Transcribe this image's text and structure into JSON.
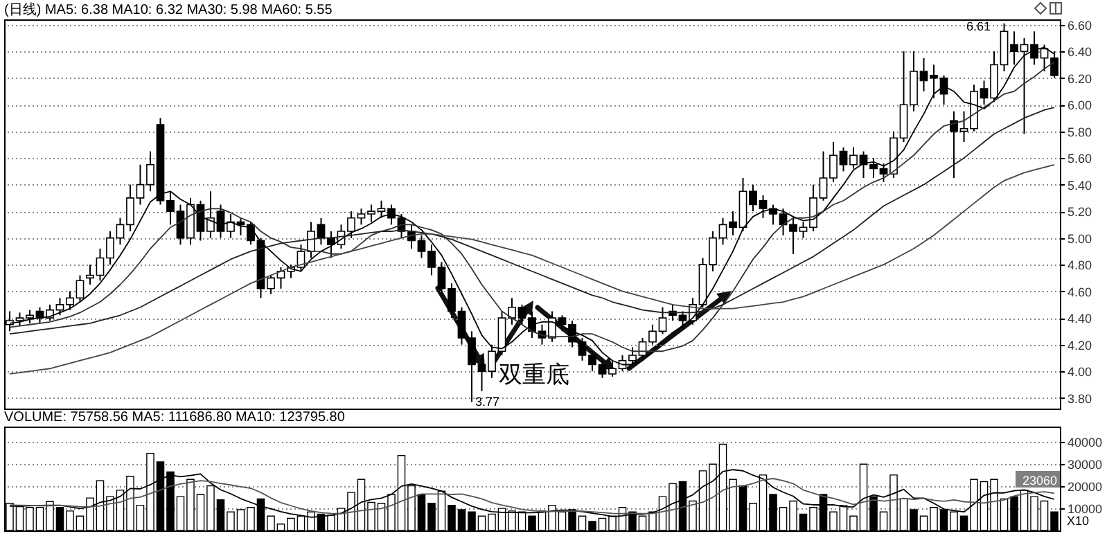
{
  "chart_data": [
    {
      "type": "candlestick",
      "title": "(日线) MA5: 6.38 MA10: 6.32 MA30: 5.98 MA60: 5.55",
      "categories": [
        null,
        null,
        null,
        null,
        null,
        null,
        null,
        null,
        null,
        null,
        null,
        null,
        null,
        null,
        null,
        null,
        null,
        null,
        null,
        null,
        null,
        null,
        null,
        null,
        null,
        null,
        null,
        null,
        null,
        null,
        null,
        null,
        null,
        null,
        null,
        null,
        null,
        null,
        null,
        null,
        null,
        null,
        null,
        null,
        null,
        null,
        null,
        null,
        null,
        null,
        null,
        null,
        null,
        null,
        null,
        null,
        null,
        null,
        null,
        null,
        null,
        null,
        null,
        null,
        null,
        null,
        null,
        null,
        null,
        null,
        null,
        null,
        null,
        null,
        null,
        null,
        null,
        null,
        null,
        null,
        null,
        null,
        null,
        null,
        null,
        null,
        null,
        null,
        null,
        null,
        null,
        null,
        null,
        null,
        null,
        null,
        null,
        null,
        null,
        null,
        null,
        null,
        null,
        null,
        null
      ],
      "ohlc": [
        [
          4.35,
          4.45,
          4.3,
          4.38
        ],
        [
          4.38,
          4.44,
          4.34,
          4.4
        ],
        [
          4.4,
          4.46,
          4.36,
          4.42
        ],
        [
          4.45,
          4.48,
          4.36,
          4.4
        ],
        [
          4.4,
          4.5,
          4.38,
          4.46
        ],
        [
          4.46,
          4.55,
          4.42,
          4.5
        ],
        [
          4.5,
          4.6,
          4.46,
          4.55
        ],
        [
          4.55,
          4.72,
          4.52,
          4.68
        ],
        [
          4.7,
          4.8,
          4.65,
          4.72
        ],
        [
          4.72,
          4.92,
          4.68,
          4.85
        ],
        [
          4.85,
          5.05,
          4.8,
          5.0
        ],
        [
          5.0,
          5.15,
          4.95,
          5.1
        ],
        [
          5.1,
          5.4,
          5.05,
          5.3
        ],
        [
          5.3,
          5.55,
          5.25,
          5.4
        ],
        [
          5.4,
          5.65,
          5.35,
          5.55
        ],
        [
          5.85,
          5.9,
          5.25,
          5.28
        ],
        [
          5.28,
          5.35,
          5.1,
          5.2
        ],
        [
          5.2,
          5.25,
          4.95,
          5.0
        ],
        [
          5.0,
          5.3,
          4.95,
          5.25
        ],
        [
          5.25,
          5.28,
          4.98,
          5.05
        ],
        [
          5.05,
          5.35,
          5.0,
          5.15
        ],
        [
          5.2,
          5.25,
          5.0,
          5.05
        ],
        [
          5.05,
          5.18,
          5.0,
          5.12
        ],
        [
          5.12,
          5.15,
          5.02,
          5.1
        ],
        [
          5.1,
          5.12,
          4.95,
          4.98
        ],
        [
          4.98,
          5.0,
          4.55,
          4.62
        ],
        [
          4.62,
          4.72,
          4.58,
          4.7
        ],
        [
          4.7,
          4.78,
          4.62,
          4.75
        ],
        [
          4.75,
          4.8,
          4.7,
          4.78
        ],
        [
          4.78,
          4.95,
          4.75,
          4.9
        ],
        [
          4.9,
          5.12,
          4.85,
          5.05
        ],
        [
          5.1,
          5.15,
          4.95,
          5.0
        ],
        [
          5.0,
          5.05,
          4.85,
          4.95
        ],
        [
          4.95,
          5.1,
          4.92,
          5.05
        ],
        [
          5.05,
          5.2,
          5.0,
          5.15
        ],
        [
          5.15,
          5.22,
          5.1,
          5.18
        ],
        [
          5.18,
          5.25,
          5.12,
          5.2
        ],
        [
          5.2,
          5.28,
          5.15,
          5.22
        ],
        [
          5.22,
          5.25,
          5.1,
          5.15
        ],
        [
          5.15,
          5.18,
          5.0,
          5.05
        ],
        [
          5.05,
          5.1,
          4.92,
          4.98
        ],
        [
          4.98,
          5.02,
          4.85,
          4.9
        ],
        [
          4.9,
          4.95,
          4.72,
          4.78
        ],
        [
          4.78,
          4.82,
          4.58,
          4.62
        ],
        [
          4.62,
          4.66,
          4.4,
          4.45
        ],
        [
          4.45,
          4.48,
          4.2,
          4.25
        ],
        [
          4.25,
          4.3,
          3.77,
          4.05
        ],
        [
          4.05,
          4.1,
          3.85,
          4.0
        ],
        [
          4.0,
          4.2,
          3.95,
          4.15
        ],
        [
          4.15,
          4.45,
          4.12,
          4.4
        ],
        [
          4.4,
          4.55,
          4.35,
          4.48
        ],
        [
          4.48,
          4.5,
          4.35,
          4.4
        ],
        [
          4.4,
          4.45,
          4.25,
          4.3
        ],
        [
          4.3,
          4.35,
          4.2,
          4.25
        ],
        [
          4.25,
          4.45,
          4.22,
          4.4
        ],
        [
          4.4,
          4.42,
          4.3,
          4.35
        ],
        [
          4.35,
          4.38,
          4.18,
          4.22
        ],
        [
          4.22,
          4.25,
          4.08,
          4.12
        ],
        [
          4.12,
          4.15,
          4.0,
          4.05
        ],
        [
          4.05,
          4.08,
          3.95,
          3.98
        ],
        [
          3.98,
          4.08,
          3.96,
          4.02
        ],
        [
          4.02,
          4.12,
          4.0,
          4.08
        ],
        [
          4.08,
          4.18,
          4.05,
          4.12
        ],
        [
          4.12,
          4.25,
          4.1,
          4.22
        ],
        [
          4.22,
          4.35,
          4.2,
          4.3
        ],
        [
          4.3,
          4.48,
          4.28,
          4.4
        ],
        [
          4.45,
          4.5,
          4.38,
          4.42
        ],
        [
          4.42,
          4.45,
          4.32,
          4.38
        ],
        [
          4.38,
          4.55,
          4.35,
          4.5
        ],
        [
          4.5,
          4.85,
          4.48,
          4.8
        ],
        [
          4.8,
          5.05,
          4.75,
          5.0
        ],
        [
          5.0,
          5.15,
          4.95,
          5.1
        ],
        [
          5.12,
          5.2,
          5.02,
          5.08
        ],
        [
          5.08,
          5.45,
          5.05,
          5.35
        ],
        [
          5.35,
          5.4,
          5.2,
          5.25
        ],
        [
          5.28,
          5.32,
          5.15,
          5.22
        ],
        [
          5.22,
          5.25,
          5.1,
          5.18
        ],
        [
          5.18,
          5.22,
          5.02,
          5.1
        ],
        [
          5.1,
          5.15,
          4.88,
          5.05
        ],
        [
          5.05,
          5.12,
          5.0,
          5.08
        ],
        [
          5.08,
          5.4,
          5.05,
          5.3
        ],
        [
          5.3,
          5.65,
          5.28,
          5.45
        ],
        [
          5.45,
          5.72,
          5.42,
          5.62
        ],
        [
          5.65,
          5.68,
          5.5,
          5.55
        ],
        [
          5.55,
          5.68,
          5.52,
          5.62
        ],
        [
          5.62,
          5.65,
          5.45,
          5.55
        ],
        [
          5.55,
          5.6,
          5.45,
          5.52
        ],
        [
          5.52,
          5.56,
          5.42,
          5.48
        ],
        [
          5.48,
          5.8,
          5.45,
          5.75
        ],
        [
          5.75,
          6.4,
          5.72,
          6.0
        ],
        [
          6.0,
          6.4,
          5.95,
          6.25
        ],
        [
          6.25,
          6.35,
          6.1,
          6.18
        ],
        [
          6.22,
          6.3,
          6.05,
          6.2
        ],
        [
          6.2,
          6.22,
          6.0,
          6.08
        ],
        [
          5.88,
          5.95,
          5.45,
          5.8
        ],
        [
          5.8,
          5.95,
          5.72,
          5.82
        ],
        [
          5.82,
          6.15,
          5.8,
          6.1
        ],
        [
          6.12,
          6.18,
          6.0,
          6.05
        ],
        [
          6.05,
          6.4,
          6.02,
          6.3
        ],
        [
          6.3,
          6.61,
          6.25,
          6.55
        ],
        [
          6.45,
          6.55,
          6.3,
          6.4
        ],
        [
          6.4,
          6.5,
          5.78,
          6.45
        ],
        [
          6.45,
          6.55,
          6.3,
          6.35
        ],
        [
          6.35,
          6.45,
          6.25,
          6.42
        ],
        [
          6.35,
          6.4,
          6.2,
          6.22
        ]
      ],
      "series": [
        {
          "type": "line",
          "color": "#000000",
          "values": [
            4.36,
            4.37,
            4.39,
            4.4,
            4.41,
            4.44,
            4.47,
            4.52,
            4.58,
            4.66,
            4.76,
            4.87,
            4.99,
            5.13,
            5.27,
            5.33,
            5.35,
            5.29,
            5.25,
            5.16,
            5.13,
            5.1,
            5.12,
            5.09,
            5.08,
            4.97,
            4.9,
            4.83,
            4.77,
            4.75,
            4.84,
            4.9,
            4.94,
            4.99,
            5.04,
            5.07,
            5.11,
            5.16,
            5.18,
            5.16,
            5.12,
            5.06,
            4.97,
            4.87,
            4.73,
            4.58,
            4.43,
            4.27,
            4.18,
            4.17,
            4.22,
            4.29,
            4.35,
            4.37,
            4.37,
            4.34,
            4.3,
            4.27,
            4.23,
            4.14,
            4.08,
            4.05,
            4.05,
            4.08,
            4.15,
            4.23,
            4.29,
            4.34,
            4.4,
            4.5,
            4.62,
            4.76,
            4.9,
            5.07,
            5.16,
            5.2,
            5.22,
            5.2,
            5.16,
            5.13,
            5.14,
            5.2,
            5.3,
            5.4,
            5.51,
            5.56,
            5.57,
            5.54,
            5.58,
            5.66,
            5.8,
            5.93,
            6.08,
            6.14,
            6.1,
            6.02,
            6.0,
            5.97,
            6.03,
            6.14,
            6.28,
            6.37,
            6.41,
            6.43,
            6.38
          ]
        },
        {
          "type": "line",
          "color": "#333333",
          "values": [
            4.33,
            4.34,
            4.35,
            4.36,
            4.37,
            4.39,
            4.41,
            4.44,
            4.48,
            4.52,
            4.58,
            4.65,
            4.73,
            4.82,
            4.92,
            5.0,
            5.08,
            5.12,
            5.17,
            5.2,
            5.22,
            5.22,
            5.19,
            5.15,
            5.12,
            5.05,
            5.0,
            4.97,
            4.93,
            4.92,
            4.9,
            4.9,
            4.88,
            4.88,
            4.9,
            4.96,
            5.02,
            5.05,
            5.07,
            5.1,
            5.1,
            5.08,
            5.06,
            5.03,
            4.96,
            4.88,
            4.77,
            4.65,
            4.55,
            4.45,
            4.4,
            4.35,
            4.3,
            4.27,
            4.26,
            4.26,
            4.26,
            4.28,
            4.28,
            4.25,
            4.22,
            4.18,
            4.15,
            4.15,
            4.15,
            4.15,
            4.17,
            4.19,
            4.23,
            4.31,
            4.4,
            4.5,
            4.6,
            4.72,
            4.84,
            4.93,
            5.03,
            5.1,
            5.15,
            5.15,
            5.16,
            5.2,
            5.25,
            5.28,
            5.33,
            5.38,
            5.42,
            5.45,
            5.5,
            5.56,
            5.62,
            5.7,
            5.78,
            5.84,
            5.86,
            5.88,
            5.93,
            5.98,
            6.03,
            6.08,
            6.1,
            6.16,
            6.21,
            6.27,
            6.32
          ]
        },
        {
          "type": "line",
          "color": "#222222",
          "values": [
            4.28,
            4.29,
            4.3,
            4.31,
            4.32,
            4.33,
            4.34,
            4.35,
            4.36,
            4.38,
            4.4,
            4.42,
            4.45,
            4.48,
            4.52,
            4.56,
            4.6,
            4.64,
            4.68,
            4.72,
            4.76,
            4.8,
            4.84,
            4.87,
            4.9,
            4.92,
            4.94,
            4.96,
            4.97,
            4.98,
            4.99,
            5.0,
            5.0,
            5.01,
            5.02,
            5.03,
            5.04,
            5.05,
            5.05,
            5.06,
            5.05,
            5.04,
            5.03,
            5.01,
            4.99,
            4.96,
            4.93,
            4.9,
            4.87,
            4.84,
            4.81,
            4.78,
            4.75,
            4.72,
            4.69,
            4.66,
            4.63,
            4.6,
            4.57,
            4.55,
            4.52,
            4.5,
            4.48,
            4.46,
            4.45,
            4.44,
            4.44,
            4.44,
            4.44,
            4.45,
            4.47,
            4.5,
            4.54,
            4.58,
            4.62,
            4.66,
            4.7,
            4.74,
            4.78,
            4.82,
            4.86,
            4.91,
            4.96,
            5.01,
            5.06,
            5.12,
            5.18,
            5.24,
            5.28,
            5.32,
            5.36,
            5.4,
            5.45,
            5.5,
            5.55,
            5.6,
            5.66,
            5.72,
            5.78,
            5.82,
            5.86,
            5.9,
            5.93,
            5.96,
            5.98
          ]
        },
        {
          "type": "line",
          "color": "#444444",
          "values": [
            3.98,
            3.99,
            4.0,
            4.01,
            4.02,
            4.04,
            4.06,
            4.08,
            4.1,
            4.12,
            4.14,
            4.17,
            4.2,
            4.23,
            4.26,
            4.3,
            4.34,
            4.38,
            4.42,
            4.46,
            4.5,
            4.54,
            4.58,
            4.62,
            4.66,
            4.69,
            4.72,
            4.75,
            4.78,
            4.8,
            4.82,
            4.84,
            4.86,
            4.88,
            4.9,
            4.92,
            4.94,
            4.96,
            4.98,
            5.0,
            5.02,
            5.03,
            5.03,
            5.02,
            5.01,
            5.0,
            4.99,
            4.97,
            4.95,
            4.93,
            4.91,
            4.89,
            4.87,
            4.84,
            4.81,
            4.78,
            4.75,
            4.72,
            4.69,
            4.66,
            4.63,
            4.6,
            4.58,
            4.56,
            4.54,
            4.52,
            4.5,
            4.49,
            4.48,
            4.47,
            4.47,
            4.47,
            4.47,
            4.48,
            4.49,
            4.5,
            4.51,
            4.52,
            4.54,
            4.56,
            4.59,
            4.62,
            4.65,
            4.68,
            4.71,
            4.74,
            4.77,
            4.8,
            4.84,
            4.88,
            4.92,
            4.97,
            5.02,
            5.08,
            5.14,
            5.2,
            5.26,
            5.32,
            5.38,
            5.43,
            5.46,
            5.49,
            5.51,
            5.53,
            5.55
          ]
        }
      ],
      "ylim": [
        3.72,
        6.64
      ],
      "yticks": [
        {
          "value": 3.8,
          "label": "3.80"
        },
        {
          "value": 4.0,
          "label": "4.00"
        },
        {
          "value": 4.2,
          "label": "4.20"
        },
        {
          "value": 4.4,
          "label": "4.40"
        },
        {
          "value": 4.6,
          "label": "4.60"
        },
        {
          "value": 4.8,
          "label": "4.80"
        },
        {
          "value": 5.0,
          "label": "5.00"
        },
        {
          "value": 5.2,
          "label": "5.20"
        },
        {
          "value": 5.4,
          "label": "5.40"
        },
        {
          "value": 5.6,
          "label": "5.60"
        },
        {
          "value": 5.8,
          "label": "5.80"
        },
        {
          "value": 6.0,
          "label": "6.00"
        },
        {
          "value": 6.2,
          "label": "6.20"
        },
        {
          "value": 6.4,
          "label": "6.40"
        },
        {
          "value": 6.6,
          "label": "6.60"
        }
      ],
      "grid": "y",
      "tick_labels": "y",
      "annotations": [
        "6.61",
        "3.77",
        "双重底"
      ]
    },
    {
      "type": "bar",
      "title": "VOLUME: 75758.56 MA5: 111686.80 MA10: 123795.80",
      "categories": [
        null,
        null,
        null,
        null,
        null,
        null,
        null,
        null,
        null,
        null,
        null,
        null,
        null,
        null,
        null,
        null,
        null,
        null,
        null,
        null,
        null,
        null,
        null,
        null,
        null,
        null,
        null,
        null,
        null,
        null,
        null,
        null,
        null,
        null,
        null,
        null,
        null,
        null,
        null,
        null,
        null,
        null,
        null,
        null,
        null,
        null,
        null,
        null,
        null,
        null,
        null,
        null,
        null,
        null,
        null,
        null,
        null,
        null,
        null,
        null,
        null,
        null,
        null,
        null,
        null,
        null,
        null,
        null,
        null,
        null,
        null,
        null,
        null,
        null,
        null,
        null,
        null,
        null,
        null,
        null,
        null,
        null,
        null,
        null,
        null,
        null,
        null,
        null,
        null,
        null,
        null,
        null,
        null,
        null,
        null,
        null,
        null,
        null,
        null,
        null,
        null,
        null,
        null,
        null,
        null
      ],
      "series": [
        {
          "type": "bar",
          "values": [
            12300,
            10800,
            10400,
            10400,
            13100,
            10400,
            8800,
            6500,
            14700,
            22500,
            15300,
            18200,
            24500,
            11400,
            34900,
            31000,
            26500,
            15300,
            23100,
            16300,
            20200,
            13900,
            8400,
            9400,
            10400,
            14300,
            6500,
            2900,
            5500,
            6500,
            8400,
            7400,
            6900,
            10000,
            17200,
            23100,
            12700,
            12300,
            16300,
            33900,
            20200,
            16300,
            12300,
            17800,
            11400,
            9400,
            8400,
            6500,
            7400,
            10000,
            8800,
            8400,
            6500,
            8800,
            11400,
            8400,
            9400,
            6500,
            4100,
            5500,
            6500,
            10400,
            8400,
            6500,
            8400,
            15300,
            21200,
            22100,
            13300,
            27000,
            30000,
            39000,
            23100,
            20200,
            12300,
            25100,
            16300,
            10400,
            13300,
            7400,
            10400,
            16300,
            8400,
            11400,
            6500,
            30000,
            15300,
            8400,
            25100,
            14300,
            9400,
            6500,
            10400,
            9400,
            8400,
            6500,
            23100,
            22100,
            23100,
            14300,
            15300,
            18200,
            15300,
            13300,
            8400
          ],
          "colors": [
            "#ffffff",
            "#ffffff",
            "#ffffff",
            "#ffffff",
            "#ffffff",
            "#000000",
            "#ffffff",
            "#ffffff",
            "#ffffff",
            "#ffffff",
            "#ffffff",
            "#ffffff",
            "#ffffff",
            "#ffffff",
            "#ffffff",
            "#000000",
            "#000000",
            "#ffffff",
            "#ffffff",
            "#ffffff",
            "#ffffff",
            "#000000",
            "#ffffff",
            "#ffffff",
            "#ffffff",
            "#000000",
            "#ffffff",
            "#ffffff",
            "#ffffff",
            "#ffffff",
            "#ffffff",
            "#000000",
            "#ffffff",
            "#ffffff",
            "#ffffff",
            "#ffffff",
            "#ffffff",
            "#ffffff",
            "#ffffff",
            "#ffffff",
            "#ffffff",
            "#000000",
            "#000000",
            "#ffffff",
            "#000000",
            "#000000",
            "#000000",
            "#ffffff",
            "#ffffff",
            "#ffffff",
            "#ffffff",
            "#ffffff",
            "#000000",
            "#ffffff",
            "#ffffff",
            "#ffffff",
            "#000000",
            "#ffffff",
            "#000000",
            "#ffffff",
            "#ffffff",
            "#ffffff",
            "#000000",
            "#ffffff",
            "#ffffff",
            "#ffffff",
            "#ffffff",
            "#000000",
            "#ffffff",
            "#ffffff",
            "#ffffff",
            "#ffffff",
            "#ffffff",
            "#000000",
            "#ffffff",
            "#ffffff",
            "#000000",
            "#ffffff",
            "#ffffff",
            "#000000",
            "#ffffff",
            "#000000",
            "#ffffff",
            "#ffffff",
            "#ffffff",
            "#ffffff",
            "#000000",
            "#ffffff",
            "#ffffff",
            "#ffffff",
            "#000000",
            "#ffffff",
            "#ffffff",
            "#000000",
            "#ffffff",
            "#000000",
            "#ffffff",
            "#ffffff",
            "#ffffff",
            "#ffffff",
            "#000000",
            "#ffffff",
            "#ffffff",
            "#ffffff",
            "#000000"
          ]
        },
        {
          "type": "line",
          "color": "#000000",
          "values": [
            11000,
            11000,
            11200,
            11300,
            11400,
            11400,
            10700,
            9900,
            10700,
            12700,
            13600,
            15400,
            19000,
            18800,
            20700,
            23100,
            25100,
            24300,
            24900,
            25600,
            21500,
            18400,
            16600,
            14400,
            12700,
            11000,
            9800,
            8500,
            7500,
            6800,
            6000,
            6300,
            6900,
            7800,
            10000,
            12800,
            14000,
            14600,
            16300,
            20000,
            21000,
            20100,
            19100,
            17800,
            15000,
            13000,
            11000,
            9500,
            8500,
            8200,
            8200,
            8000,
            8000,
            8200,
            8800,
            9200,
            9100,
            8500,
            7800,
            7200,
            6200,
            6600,
            7400,
            7300,
            8000,
            9800,
            12200,
            14000,
            16100,
            19800,
            22300,
            26700,
            27500,
            27000,
            25000,
            23300,
            19500,
            17300,
            15500,
            12000,
            11600,
            11600,
            11600,
            10800,
            10600,
            14500,
            16100,
            15100,
            16700,
            18600,
            14600,
            14600,
            12300,
            9700,
            9000,
            8400,
            12000,
            15900,
            17000,
            17000,
            18000,
            18400,
            17200,
            15400,
            14100
          ]
        },
        {
          "type": "line",
          "color": "#555555",
          "values": [
            11500,
            11400,
            11300,
            11200,
            11200,
            11300,
            11100,
            10800,
            10700,
            11100,
            12100,
            12800,
            14500,
            15100,
            16700,
            18200,
            20000,
            21000,
            21800,
            22500,
            22100,
            21300,
            20600,
            19800,
            19100,
            17200,
            14700,
            12600,
            11200,
            9800,
            8800,
            8100,
            7700,
            7600,
            8300,
            9000,
            9500,
            9900,
            11300,
            13300,
            15000,
            16500,
            16500,
            16500,
            16300,
            16500,
            15500,
            14300,
            12600,
            11500,
            10500,
            9500,
            9000,
            8600,
            8600,
            8700,
            8800,
            8700,
            8400,
            8100,
            7700,
            7600,
            7800,
            7600,
            7700,
            8500,
            9400,
            10500,
            11600,
            12800,
            15000,
            18200,
            19800,
            20100,
            21300,
            22800,
            23500,
            22500,
            21200,
            18300,
            16900,
            15400,
            14500,
            13200,
            11700,
            12900,
            13800,
            13300,
            13800,
            14500,
            14100,
            14500,
            13700,
            13200,
            13800,
            13000,
            12700,
            12400,
            13100,
            13800,
            15600,
            16600,
            17100,
            17500,
            16800
          ]
        }
      ],
      "ylim": [
        0,
        47000
      ],
      "yticks": [
        10000,
        20000,
        30000,
        40000
      ],
      "grid": "y",
      "tick_labels": "y",
      "annotations": [
        "23060",
        "X10"
      ]
    }
  ]
}
